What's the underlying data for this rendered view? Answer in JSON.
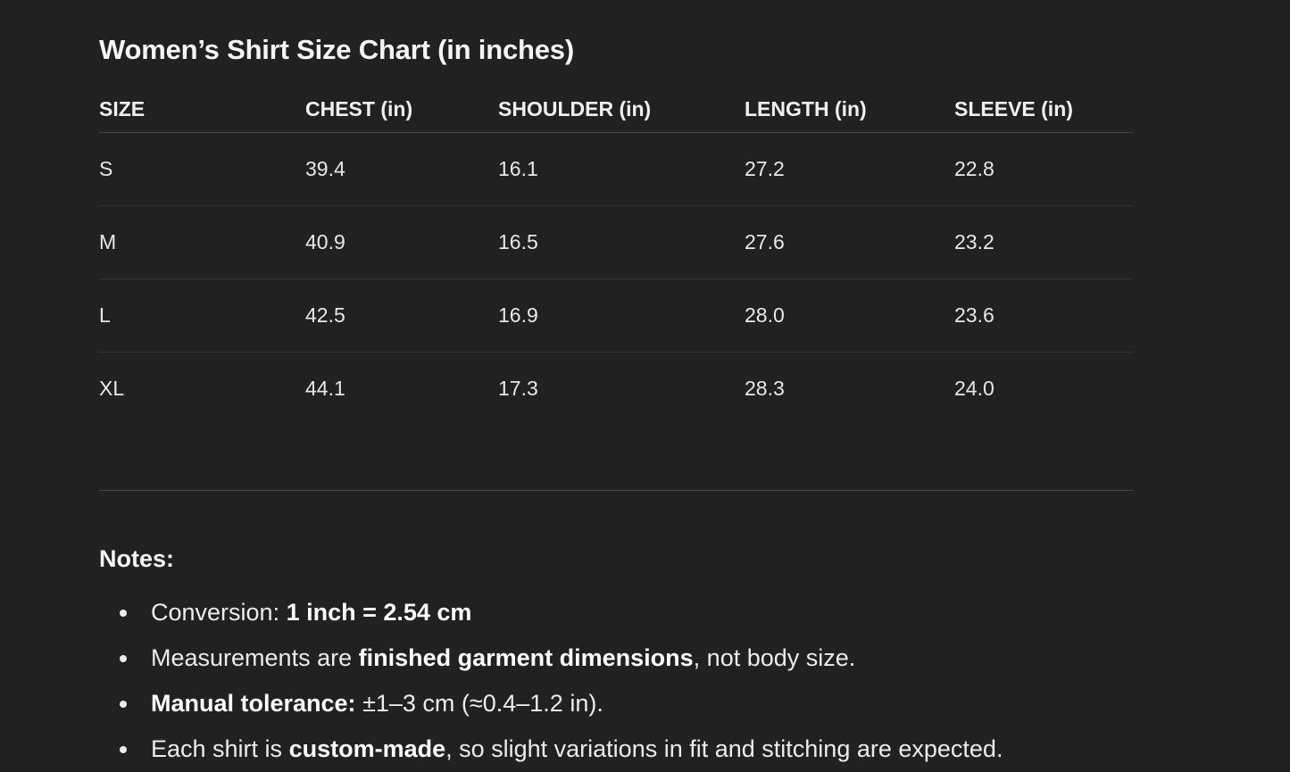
{
  "title": "Women’s Shirt Size Chart (in inches)",
  "table": {
    "headers": [
      "SIZE",
      "CHEST (in)",
      "SHOULDER (in)",
      "LENGTH (in)",
      "SLEEVE (in)"
    ],
    "rows": [
      [
        "S",
        "39.4",
        "16.1",
        "27.2",
        "22.8"
      ],
      [
        "M",
        "40.9",
        "16.5",
        "27.6",
        "23.2"
      ],
      [
        "L",
        "42.5",
        "16.9",
        "28.0",
        "23.6"
      ],
      [
        "XL",
        "44.1",
        "17.3",
        "28.3",
        "24.0"
      ]
    ]
  },
  "notes": {
    "heading": "Notes:",
    "items": [
      {
        "segments": [
          {
            "text": "Conversion: ",
            "bold": false
          },
          {
            "text": "1 inch = 2.54 cm",
            "bold": true
          }
        ]
      },
      {
        "segments": [
          {
            "text": "Measurements are ",
            "bold": false
          },
          {
            "text": "finished garment dimensions",
            "bold": true
          },
          {
            "text": ", not body size.",
            "bold": false
          }
        ]
      },
      {
        "segments": [
          {
            "text": "Manual tolerance:",
            "bold": true
          },
          {
            "text": " ±1–3 cm (≈0.4–1.2 in).",
            "bold": false
          }
        ]
      },
      {
        "segments": [
          {
            "text": "Each shirt is ",
            "bold": false
          },
          {
            "text": "custom-made",
            "bold": true
          },
          {
            "text": ", so slight variations in fit and stitching are expected.",
            "bold": false
          }
        ]
      }
    ]
  },
  "colors": {
    "background": "#212121",
    "text": "#ececec",
    "divider": "#4a4a4a"
  }
}
